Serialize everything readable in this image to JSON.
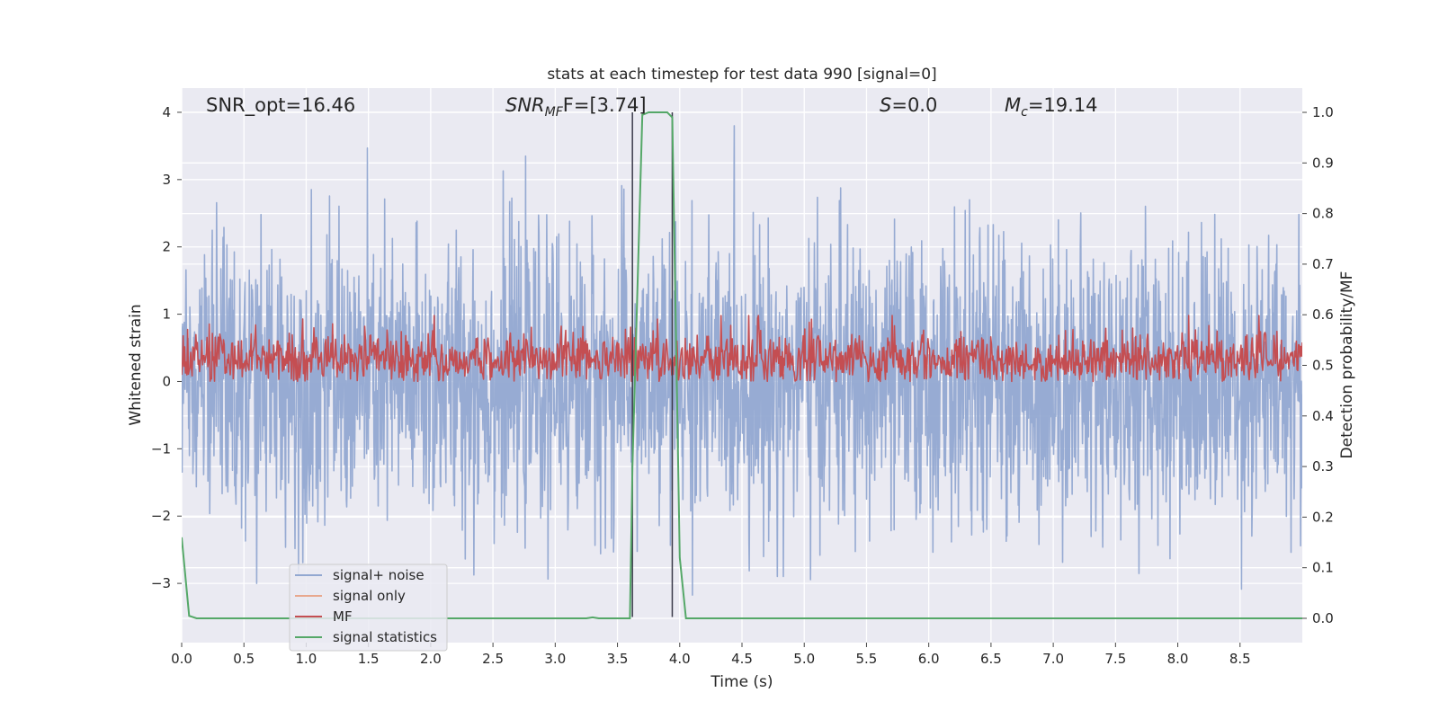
{
  "chart_data": {
    "type": "line",
    "title": "stats at each timestep for test data 990 [signal=0]",
    "xlabel": "Time (s)",
    "ylabel": "Whitened strain",
    "y2label": "Detection probability/MF",
    "xlim": [
      0.0,
      9.0
    ],
    "ylim": [
      -3.88,
      4.36
    ],
    "y2lim": [
      -0.048,
      1.048
    ],
    "xticks": [
      "0.0",
      "0.5",
      "1.0",
      "1.5",
      "2.0",
      "2.5",
      "3.0",
      "3.5",
      "4.0",
      "4.5",
      "5.0",
      "5.5",
      "6.0",
      "6.5",
      "7.0",
      "7.5",
      "8.0",
      "8.5"
    ],
    "yticks": [
      "4",
      "3",
      "2",
      "1",
      "0",
      "−1",
      "−2",
      "−3"
    ],
    "y2ticks": [
      "1.0",
      "0.9",
      "0.8",
      "0.7",
      "0.6",
      "0.5",
      "0.4",
      "0.3",
      "0.2",
      "0.1",
      "0.0"
    ],
    "grid": true,
    "legend_position": "lower-left",
    "annotations": {
      "snr_opt": "SNR_opt=16.46",
      "snr_mf_main": "SNR",
      "snr_mf_sub": "MF",
      "snr_mf_tail": "F=[3.74]",
      "s_main": "S",
      "s_tail": "=0.0",
      "mc_main": "M",
      "mc_sub": "c",
      "mc_tail": "=19.14"
    },
    "series": [
      {
        "name": "signal+ noise",
        "color": "#92a8d1",
        "style": "dense noise, range about -3.5 to 3.8 strain"
      },
      {
        "name": "signal only",
        "color": "#e8a88e"
      },
      {
        "name": "MF",
        "color": "#c44e52",
        "style": "noise band, about 0.0 to 1.0 strain"
      },
      {
        "name": "signal statistics",
        "color": "#55a868",
        "axis": "right",
        "x": [
          0.0,
          0.06,
          0.12,
          0.2,
          0.5,
          1.0,
          2.0,
          3.0,
          3.25,
          3.3,
          3.35,
          3.45,
          3.6,
          3.62,
          3.7,
          3.75,
          3.9,
          3.94,
          4.0,
          4.05,
          4.5,
          5.0,
          6.0,
          7.0,
          8.0,
          9.0
        ],
        "y": [
          0.16,
          0.005,
          0.0,
          0.0,
          0.0,
          0.0,
          0.0,
          0.0,
          0.0,
          0.002,
          0.0,
          0.0,
          0.0,
          0.3,
          0.995,
          1.0,
          1.0,
          0.99,
          0.12,
          0.0,
          0.0,
          0.0,
          0.0,
          0.0,
          0.0,
          0.0
        ]
      }
    ],
    "vlines": [
      {
        "x": 3.62,
        "y_from": -3.5,
        "y_to": 4.0,
        "color": "#3a3a4a"
      },
      {
        "x": 3.94,
        "y_from": -3.5,
        "y_to": 4.0,
        "color": "#3a3a4a"
      }
    ]
  }
}
